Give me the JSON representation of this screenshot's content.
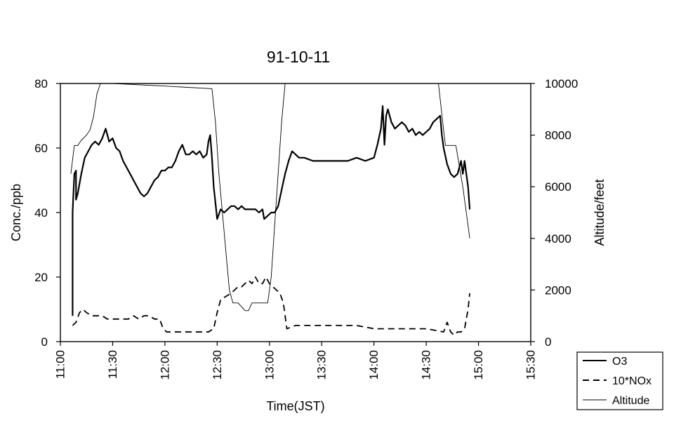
{
  "chart_data": {
    "type": "line",
    "title": "91-10-11",
    "xlabel": "Time(JST)",
    "ylabel": "Conc./ppb",
    "y2label": "Altitude/feet",
    "xlim": [
      "11:00",
      "15:30"
    ],
    "ylim": [
      0,
      80
    ],
    "y2lim": [
      0,
      10000
    ],
    "x_ticks": [
      "11:00",
      "11:30",
      "12:00",
      "12:30",
      "13:00",
      "13:30",
      "14:00",
      "14:30",
      "15:00",
      "15:30"
    ],
    "y_ticks": [
      "0",
      "20",
      "40",
      "60",
      "80"
    ],
    "y2_ticks": [
      "0",
      "2000",
      "4000",
      "6000",
      "8000",
      "10000"
    ],
    "grid": false,
    "legend_position": "bottom-right",
    "series": [
      {
        "name": "O3",
        "axis": "left",
        "style": "solid-thick",
        "points": [
          [
            "11:07",
            8
          ],
          [
            "11:07",
            40
          ],
          [
            "11:08",
            52
          ],
          [
            "11:09",
            53
          ],
          [
            "11:09",
            44
          ],
          [
            "11:10",
            46
          ],
          [
            "11:12",
            52
          ],
          [
            "11:14",
            57
          ],
          [
            "11:16",
            59
          ],
          [
            "11:18",
            61
          ],
          [
            "11:20",
            62
          ],
          [
            "11:22",
            61
          ],
          [
            "11:24",
            63
          ],
          [
            "11:26",
            66
          ],
          [
            "11:28",
            62
          ],
          [
            "11:30",
            63
          ],
          [
            "11:32",
            60
          ],
          [
            "11:34",
            59
          ],
          [
            "11:36",
            56
          ],
          [
            "11:38",
            54
          ],
          [
            "11:40",
            52
          ],
          [
            "11:42",
            50
          ],
          [
            "11:44",
            48
          ],
          [
            "11:46",
            46
          ],
          [
            "11:48",
            45
          ],
          [
            "11:50",
            46
          ],
          [
            "11:52",
            48
          ],
          [
            "11:54",
            50
          ],
          [
            "11:56",
            51
          ],
          [
            "11:58",
            53
          ],
          [
            "12:00",
            53
          ],
          [
            "12:02",
            54
          ],
          [
            "12:04",
            54
          ],
          [
            "12:06",
            56
          ],
          [
            "12:08",
            59
          ],
          [
            "12:10",
            61
          ],
          [
            "12:12",
            58
          ],
          [
            "12:14",
            58
          ],
          [
            "12:16",
            59
          ],
          [
            "12:18",
            58
          ],
          [
            "12:20",
            59
          ],
          [
            "12:22",
            57
          ],
          [
            "12:24",
            58
          ],
          [
            "12:25",
            62
          ],
          [
            "12:26",
            64
          ],
          [
            "12:27",
            57
          ],
          [
            "12:28",
            48
          ],
          [
            "12:29",
            43
          ],
          [
            "12:30",
            38
          ],
          [
            "12:32",
            41
          ],
          [
            "12:34",
            40
          ],
          [
            "12:36",
            41
          ],
          [
            "12:38",
            42
          ],
          [
            "12:40",
            42
          ],
          [
            "12:42",
            41
          ],
          [
            "12:44",
            42
          ],
          [
            "12:46",
            41
          ],
          [
            "12:48",
            41
          ],
          [
            "12:50",
            41
          ],
          [
            "12:52",
            41
          ],
          [
            "12:54",
            40
          ],
          [
            "12:56",
            41
          ],
          [
            "12:57",
            38
          ],
          [
            "12:59",
            39
          ],
          [
            "13:01",
            40
          ],
          [
            "13:03",
            40
          ],
          [
            "13:05",
            42
          ],
          [
            "13:07",
            47
          ],
          [
            "13:09",
            52
          ],
          [
            "13:11",
            56
          ],
          [
            "13:13",
            59
          ],
          [
            "13:15",
            58
          ],
          [
            "13:17",
            57
          ],
          [
            "13:20",
            57
          ],
          [
            "13:25",
            56
          ],
          [
            "13:30",
            56
          ],
          [
            "13:35",
            56
          ],
          [
            "13:40",
            56
          ],
          [
            "13:45",
            56
          ],
          [
            "13:50",
            57
          ],
          [
            "13:55",
            56
          ],
          [
            "14:00",
            57
          ],
          [
            "14:02",
            61
          ],
          [
            "14:04",
            66
          ],
          [
            "14:05",
            73
          ],
          [
            "14:06",
            61
          ],
          [
            "14:07",
            70
          ],
          [
            "14:08",
            72
          ],
          [
            "14:10",
            68
          ],
          [
            "14:12",
            66
          ],
          [
            "14:14",
            67
          ],
          [
            "14:16",
            68
          ],
          [
            "14:18",
            67
          ],
          [
            "14:20",
            65
          ],
          [
            "14:22",
            66
          ],
          [
            "14:24",
            64
          ],
          [
            "14:26",
            65
          ],
          [
            "14:28",
            64
          ],
          [
            "14:30",
            65
          ],
          [
            "14:32",
            66
          ],
          [
            "14:34",
            68
          ],
          [
            "14:36",
            69
          ],
          [
            "14:38",
            70
          ],
          [
            "14:39",
            64
          ],
          [
            "14:40",
            60
          ],
          [
            "14:42",
            55
          ],
          [
            "14:44",
            52
          ],
          [
            "14:46",
            51
          ],
          [
            "14:48",
            52
          ],
          [
            "14:50",
            56
          ],
          [
            "14:51",
            52
          ],
          [
            "14:52",
            56
          ],
          [
            "14:53",
            52
          ],
          [
            "14:54",
            48
          ],
          [
            "14:55",
            41
          ]
        ]
      },
      {
        "name": "10*NOx",
        "axis": "left",
        "style": "dashed",
        "points": [
          [
            "11:07",
            5
          ],
          [
            "11:09",
            6
          ],
          [
            "11:11",
            9
          ],
          [
            "11:13",
            10
          ],
          [
            "11:15",
            9
          ],
          [
            "11:18",
            8
          ],
          [
            "11:21",
            8
          ],
          [
            "11:24",
            8
          ],
          [
            "11:27",
            7
          ],
          [
            "11:30",
            7
          ],
          [
            "11:33",
            7
          ],
          [
            "11:36",
            7
          ],
          [
            "11:39",
            7
          ],
          [
            "11:42",
            8
          ],
          [
            "11:45",
            7
          ],
          [
            "11:48",
            8
          ],
          [
            "11:51",
            8
          ],
          [
            "11:54",
            7
          ],
          [
            "11:57",
            7
          ],
          [
            "11:59",
            4
          ],
          [
            "12:01",
            3
          ],
          [
            "12:05",
            3
          ],
          [
            "12:10",
            3
          ],
          [
            "12:15",
            3
          ],
          [
            "12:20",
            3
          ],
          [
            "12:25",
            3
          ],
          [
            "12:28",
            4
          ],
          [
            "12:30",
            9
          ],
          [
            "12:32",
            13
          ],
          [
            "12:35",
            14
          ],
          [
            "12:38",
            15
          ],
          [
            "12:40",
            16
          ],
          [
            "12:42",
            17
          ],
          [
            "12:44",
            17
          ],
          [
            "12:46",
            18
          ],
          [
            "12:48",
            19
          ],
          [
            "12:50",
            18
          ],
          [
            "12:52",
            20
          ],
          [
            "12:54",
            18
          ],
          [
            "12:56",
            18
          ],
          [
            "12:58",
            20
          ],
          [
            "13:00",
            18
          ],
          [
            "13:02",
            17
          ],
          [
            "13:04",
            16
          ],
          [
            "13:06",
            15
          ],
          [
            "13:08",
            12
          ],
          [
            "13:10",
            4
          ],
          [
            "13:15",
            5
          ],
          [
            "13:20",
            5
          ],
          [
            "13:30",
            5
          ],
          [
            "13:40",
            5
          ],
          [
            "13:50",
            5
          ],
          [
            "14:00",
            4
          ],
          [
            "14:10",
            4
          ],
          [
            "14:20",
            4
          ],
          [
            "14:30",
            4
          ],
          [
            "14:40",
            3
          ],
          [
            "14:42",
            6
          ],
          [
            "14:44",
            3
          ],
          [
            "14:46",
            2
          ],
          [
            "14:48",
            3
          ],
          [
            "14:50",
            3
          ],
          [
            "14:52",
            4
          ],
          [
            "14:54",
            10
          ],
          [
            "14:55",
            15
          ]
        ]
      },
      {
        "name": "Altitude",
        "axis": "right",
        "style": "solid-thin",
        "points": [
          [
            "11:06",
            6500
          ],
          [
            "11:08",
            7600
          ],
          [
            "11:10",
            7600
          ],
          [
            "11:12",
            7800
          ],
          [
            "11:15",
            8000
          ],
          [
            "11:17",
            8200
          ],
          [
            "11:19",
            8700
          ],
          [
            "11:21",
            9600
          ],
          [
            "11:23",
            10000
          ],
          [
            "11:30",
            10000
          ],
          [
            "12:00",
            9900
          ],
          [
            "12:27",
            9800
          ],
          [
            "12:29",
            8500
          ],
          [
            "12:31",
            6500
          ],
          [
            "12:33",
            5000
          ],
          [
            "12:35",
            3500
          ],
          [
            "12:37",
            2000
          ],
          [
            "12:39",
            1500
          ],
          [
            "12:42",
            1500
          ],
          [
            "12:46",
            1200
          ],
          [
            "12:48",
            1200
          ],
          [
            "12:50",
            1500
          ],
          [
            "12:56",
            1500
          ],
          [
            "12:59",
            1500
          ],
          [
            "13:01",
            2500
          ],
          [
            "13:03",
            4500
          ],
          [
            "13:05",
            6500
          ],
          [
            "13:07",
            8500
          ],
          [
            "13:09",
            10000
          ],
          [
            "14:00",
            10000
          ],
          [
            "14:30",
            10000
          ],
          [
            "14:37",
            10000
          ],
          [
            "14:39",
            8800
          ],
          [
            "14:41",
            7600
          ],
          [
            "14:43",
            7600
          ],
          [
            "14:47",
            7600
          ],
          [
            "14:49",
            6800
          ],
          [
            "14:51",
            6000
          ],
          [
            "14:53",
            5000
          ],
          [
            "14:55",
            4000
          ]
        ]
      }
    ]
  }
}
